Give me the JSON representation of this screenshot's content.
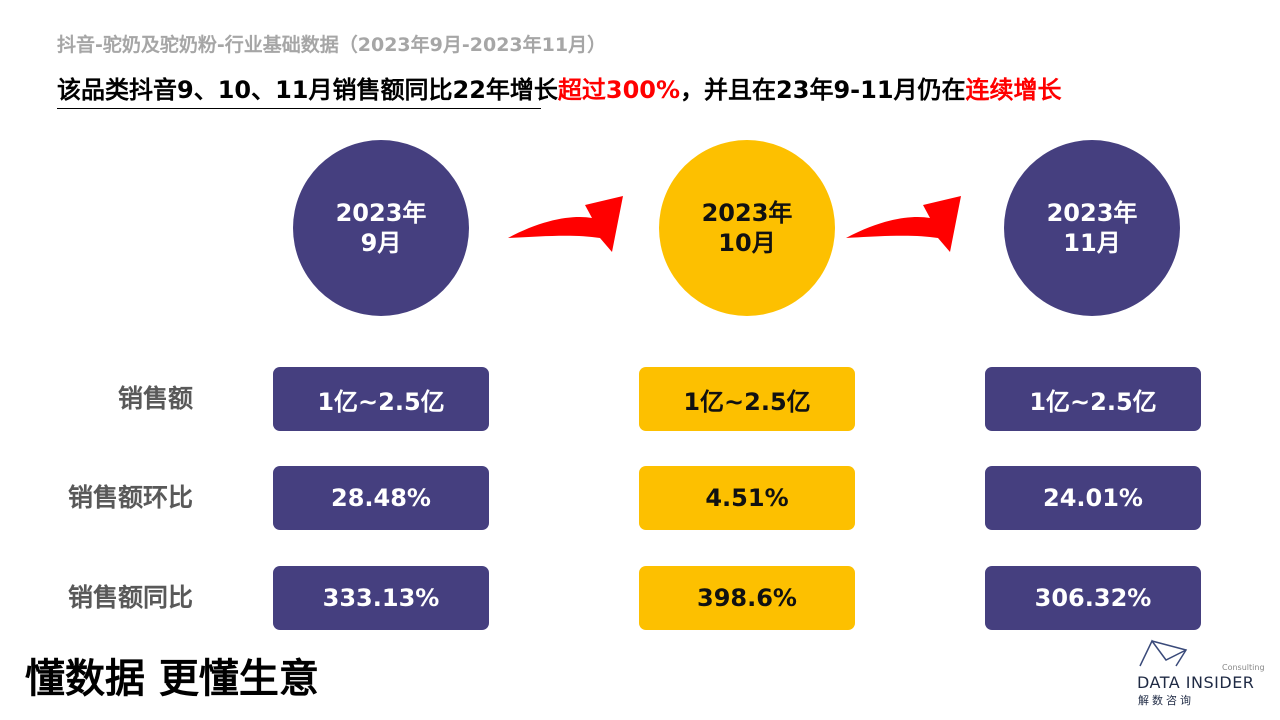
{
  "header": {
    "title": "抖音-驼奶及驼奶粉-行业基础数据（2023年9月-2023年11月）",
    "headline": [
      "该品类抖音9、10、11月销售额同比22年增长",
      "超过300%",
      "，并且在23年9-11月仍在",
      "连续增长"
    ]
  },
  "periods": [
    {
      "year": "2023年",
      "month": "9月"
    },
    {
      "year": "2023年",
      "month": "10月"
    },
    {
      "year": "2023年",
      "month": "11月"
    }
  ],
  "table": {
    "row_labels": [
      "销售额",
      "销售额环比",
      "销售额同比"
    ],
    "rows": [
      [
        "1亿~2.5亿",
        "1亿~2.5亿",
        "1亿~2.5亿"
      ],
      [
        "28.48%",
        "4.51%",
        "24.01%"
      ],
      [
        "333.13%",
        "398.6%",
        "306.32%"
      ]
    ]
  },
  "footer": {
    "slogan": "懂数据 更懂生意",
    "logo": {
      "tag": "Consulting",
      "brand": "DATA INSIDER",
      "sub": "解数咨询"
    }
  }
}
